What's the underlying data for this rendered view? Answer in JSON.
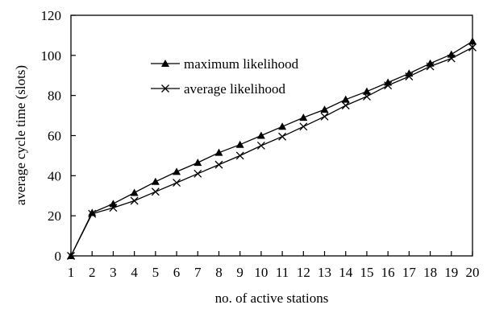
{
  "chart_data": {
    "type": "line",
    "title": "",
    "xlabel": "no. of active stations",
    "ylabel": "average cycle time (slots)",
    "x": [
      1,
      2,
      3,
      4,
      5,
      6,
      7,
      8,
      9,
      10,
      11,
      12,
      13,
      14,
      15,
      16,
      17,
      18,
      19,
      20
    ],
    "xlim": [
      1,
      20
    ],
    "ylim": [
      0,
      120
    ],
    "yticks": [
      0,
      20,
      40,
      60,
      80,
      100,
      120
    ],
    "xticks": [
      1,
      2,
      3,
      4,
      5,
      6,
      7,
      8,
      9,
      10,
      11,
      12,
      13,
      14,
      15,
      16,
      17,
      18,
      19,
      20
    ],
    "grid": false,
    "legend_position": "upper-left-inside",
    "series": [
      {
        "name": "maximum likelihood",
        "marker": "triangle",
        "values": [
          0,
          21.5,
          26,
          31.5,
          37,
          42,
          46.5,
          51.5,
          55.5,
          60,
          64.5,
          69,
          73,
          78,
          82,
          86.5,
          91,
          96,
          100.5,
          107
        ]
      },
      {
        "name": "average likelihood",
        "marker": "x",
        "values": [
          0,
          21,
          24,
          27.5,
          32,
          36.5,
          41,
          45.5,
          50,
          55,
          59.5,
          64.5,
          69.5,
          75,
          79.5,
          85,
          89.5,
          94.5,
          98.5,
          104
        ]
      }
    ],
    "colors": {
      "line": "#000000",
      "background": "#ffffff"
    }
  }
}
